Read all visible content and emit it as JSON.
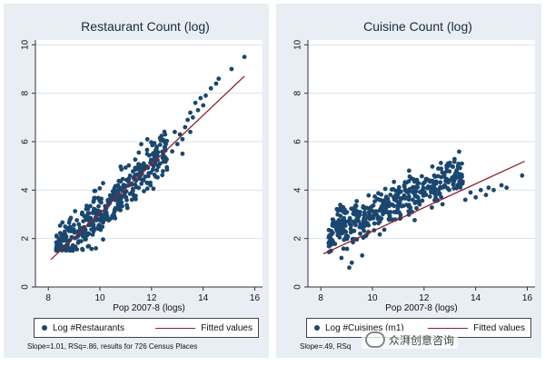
{
  "chart_data": [
    {
      "type": "scatter",
      "title": "Restaurant Count (log)",
      "xlabel": "Pop 2007-8 (logs)",
      "ylabel": "",
      "xlim": [
        7.5,
        16.3
      ],
      "ylim": [
        0,
        10.2
      ],
      "x_ticks": [
        "8",
        "10",
        "12",
        "14",
        "16"
      ],
      "y_ticks": [
        "0",
        "2",
        "4",
        "6",
        "8",
        "10"
      ],
      "grid": "horizontal",
      "series": [
        {
          "name": "Log #Restaurants",
          "type": "scatter",
          "color": "#1a476f",
          "cloud": {
            "x_range": [
              8.3,
              12.6
            ],
            "slope": 1.01,
            "intercept": -7.05,
            "y_noise": 0.5,
            "count": 440
          },
          "points": [
            [
              12.8,
              5.6
            ],
            [
              13.0,
              5.9
            ],
            [
              13.1,
              6.3
            ],
            [
              13.2,
              6.1
            ],
            [
              13.3,
              6.6
            ],
            [
              13.4,
              6.9
            ],
            [
              13.5,
              6.4
            ],
            [
              13.5,
              7.2
            ],
            [
              13.6,
              7.0
            ],
            [
              13.7,
              7.6
            ],
            [
              13.8,
              7.3
            ],
            [
              13.9,
              7.8
            ],
            [
              14.0,
              7.5
            ],
            [
              13.2,
              5.5
            ],
            [
              12.9,
              6.4
            ],
            [
              14.1,
              7.9
            ],
            [
              14.3,
              8.2
            ],
            [
              14.5,
              8.4
            ],
            [
              14.6,
              8.6
            ],
            [
              15.1,
              9.0
            ],
            [
              15.6,
              9.5
            ]
          ]
        },
        {
          "name": "Fitted values",
          "type": "line",
          "color": "#8b2332",
          "slope": 1.01,
          "intercept": -7.05,
          "x_range": [
            8.1,
            15.6
          ]
        }
      ]
    },
    {
      "type": "scatter",
      "title": "Cuisine Count (log)",
      "xlabel": "Pop 2007-8 (logs)",
      "ylabel": "",
      "xlim": [
        7.5,
        16.3
      ],
      "ylim": [
        0,
        10.2
      ],
      "x_ticks": [
        "8",
        "10",
        "12",
        "14",
        "16"
      ],
      "y_ticks": [
        "0",
        "2",
        "4",
        "6",
        "8",
        "10"
      ],
      "grid": "horizontal",
      "series": [
        {
          "name": "Log #Cuisines (m1)",
          "type": "scatter",
          "color": "#1a476f",
          "cloud": {
            "x_range": [
              8.3,
              13.5
            ],
            "slope": 0.49,
            "intercept": -1.9,
            "y_noise": 0.4,
            "count": 440
          },
          "points": [
            [
              13.6,
              3.6
            ],
            [
              13.8,
              3.9
            ],
            [
              14.0,
              3.7
            ],
            [
              14.2,
              4.0
            ],
            [
              14.4,
              3.8
            ],
            [
              14.5,
              4.1
            ],
            [
              14.7,
              4.0
            ],
            [
              15.0,
              4.2
            ],
            [
              15.2,
              4.1
            ],
            [
              15.8,
              4.6
            ],
            [
              8.8,
              1.2
            ],
            [
              9.2,
              1.0
            ],
            [
              9.6,
              1.3
            ],
            [
              9.1,
              0.8
            ]
          ]
        },
        {
          "name": "Fitted values",
          "type": "line",
          "color": "#8b2332",
          "slope": 0.49,
          "intercept": -2.6,
          "x_range": [
            8.1,
            15.9
          ]
        }
      ]
    }
  ],
  "panels": [
    {
      "title": "Restaurant Count (log)",
      "xlabel": "Pop 2007-8 (logs)",
      "legend": {
        "scatter_label": "Log #Restaurants",
        "line_label": "Fitted values"
      },
      "note": "Slope=1.01, RSq=.86, results for 726 Census Places"
    },
    {
      "title": "Cuisine Count (log)",
      "xlabel": "Pop 2007-8 (logs)",
      "legend": {
        "scatter_label": "Log #Cuisines (m1)",
        "line_label": "Fitted values"
      },
      "note": "Slope=.49, RSq"
    }
  ],
  "watermark": {
    "text": "众湃创意咨询",
    "icon": "wechat-icon"
  },
  "colors": {
    "panel_bg": "#e8eef3",
    "plot_bg": "#ffffff",
    "marker": "#1a476f",
    "fit_line": "#8b2332",
    "grid": "#d9e2e9"
  }
}
